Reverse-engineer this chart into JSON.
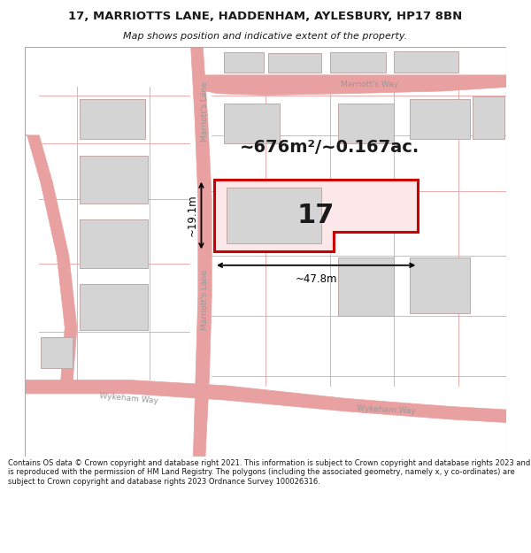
{
  "title_line1": "17, MARRIOTTS LANE, HADDENHAM, AYLESBURY, HP17 8BN",
  "title_line2": "Map shows position and indicative extent of the property.",
  "footer_text": "Contains OS data © Crown copyright and database right 2021. This information is subject to Crown copyright and database rights 2023 and is reproduced with the permission of HM Land Registry. The polygons (including the associated geometry, namely x, y co-ordinates) are subject to Crown copyright and database rights 2023 Ordnance Survey 100026316.",
  "area_label": "~676m²/~0.167ac.",
  "number_label": "17",
  "dim_horiz": "~47.8m",
  "dim_vert": "~19.1m",
  "road_label_marriotts_lane_upper": "Marriott's Lane",
  "road_label_marriotts_lane_lower": "Marriott's Lane",
  "road_label_marriotts_way": "Marriott's Way",
  "road_label_wykeham_way_left": "Wykeham Way",
  "road_label_wykeham_way_right": "Wykeham Way",
  "map_bg": "#ffffff",
  "road_line_color": "#e8a0a0",
  "plot_outline_color": "#cc0000",
  "plot_fill_color": "#fce8e8",
  "building_fill": "#d4d4d4",
  "building_edge": "#c0a8a8",
  "dim_color": "#000000",
  "text_color": "#1a1a1a",
  "title_fontsize": 9.5,
  "subtitle_fontsize": 8.0,
  "footer_fontsize": 6.0,
  "area_fontsize": 14,
  "number_fontsize": 22,
  "dim_fontsize": 8.5,
  "road_label_fontsize": 6.5
}
